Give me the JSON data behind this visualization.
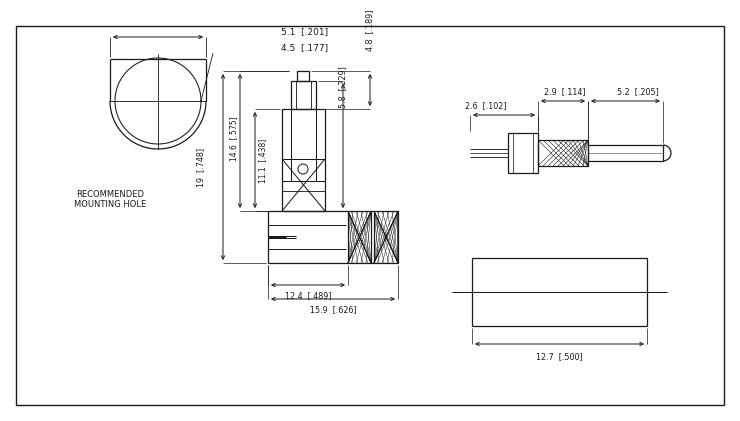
{
  "bg_color": "#ffffff",
  "line_color": "#1a1a1a",
  "lw": 0.9,
  "dims": {
    "d_5_1": "5.1  [.201]",
    "d_4_5": "4.5  [.177]",
    "d_5_8": "5.8  [.229]",
    "d_4_8": "4.8  [.189]",
    "d_12_4": "12.4  [.489]",
    "d_15_9": "15.9  [.626]",
    "d_19": "19  [.748]",
    "d_14_6": "14.6  [.575]",
    "d_11_1": "11.1  [.438]",
    "d_2_6": "2.6  [.102]",
    "d_2_9": "2.9  [.114]",
    "d_5_2": "5.2  [.205]",
    "d_12_7": "12.7  [.500]"
  },
  "label_rec_mounting": "RECOMMENDED\nMOUNTING HOLE"
}
